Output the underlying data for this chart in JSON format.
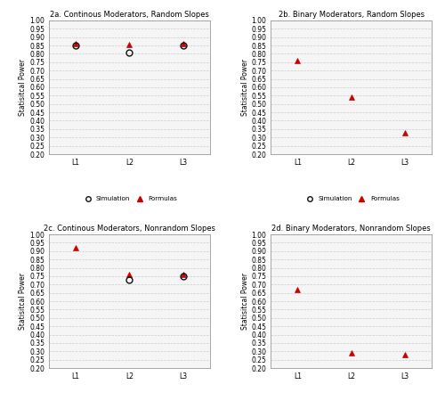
{
  "panels": [
    {
      "title": "2a. Continous Moderators, Random Slopes",
      "sim": [
        0.852,
        0.808,
        0.852
      ],
      "formula": [
        0.86,
        0.858,
        0.86
      ]
    },
    {
      "title": "2b. Binary Moderators, Random Slopes",
      "sim": [
        null,
        null,
        null
      ],
      "formula": [
        0.762,
        0.54,
        0.33
      ]
    },
    {
      "title": "2c. Continous Moderators, Nonrandom Slopes",
      "sim": [
        null,
        0.73,
        0.752
      ],
      "formula": [
        0.92,
        0.762,
        0.76
      ]
    },
    {
      "title": "2d. Binary Moderators, Nonrandom Slopes",
      "sim": [
        null,
        null,
        null
      ],
      "formula": [
        0.668,
        0.29,
        0.28
      ]
    }
  ],
  "xlabels": [
    "L1",
    "L2",
    "L3"
  ],
  "ylabel": "Statisitcal Power",
  "ylim": [
    0.2,
    1.0
  ],
  "yticks": [
    0.2,
    0.25,
    0.3,
    0.35,
    0.4,
    0.45,
    0.5,
    0.55,
    0.6,
    0.65,
    0.7,
    0.75,
    0.8,
    0.85,
    0.9,
    0.95,
    1.0
  ],
  "sim_color": "#111111",
  "formula_color": "#cc0000",
  "bg_color": "#ffffff",
  "plot_bg": "#f5f5f5",
  "grid_color": "#cccccc",
  "legend_sim": "Simulation",
  "legend_formula": "Formulas"
}
